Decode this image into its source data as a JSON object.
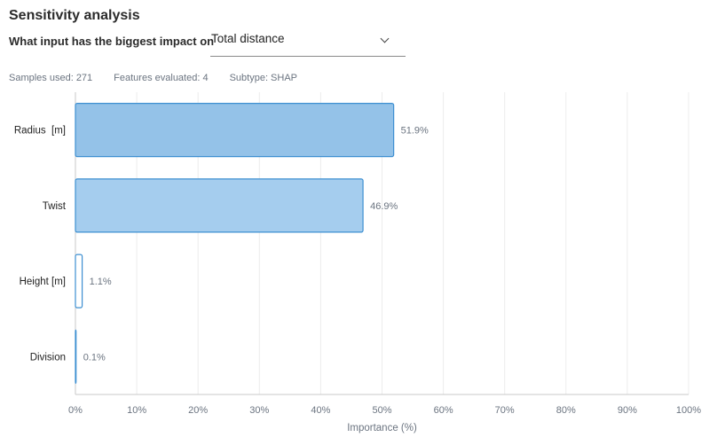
{
  "header": {
    "title": "Sensitivity analysis",
    "prompt": "What input has the biggest impact on",
    "selected_output": "Total distance"
  },
  "meta": {
    "samples": "Samples used: 271",
    "features": "Features evaluated: 4",
    "subtype": "Subtype: SHAP"
  },
  "colors": {
    "bar_fill": [
      "#94c2e8",
      "#a5cdee",
      "#ffffff",
      "#ffffff"
    ],
    "bar_stroke": "#3d8fd1",
    "grid": "#ececec",
    "axis": "#c8c8c8"
  },
  "chart_data": {
    "type": "bar",
    "orientation": "horizontal",
    "categories": [
      "Radius  [m]",
      "Twist",
      "Height [m]",
      "Division"
    ],
    "values": [
      51.9,
      46.9,
      1.1,
      0.1
    ],
    "value_labels": [
      "51.9%",
      "46.9%",
      "1.1%",
      "0.1%"
    ],
    "xlabel": "Importance (%)",
    "ylabel": "",
    "xlim": [
      0,
      100
    ],
    "xticks": [
      0,
      10,
      20,
      30,
      40,
      50,
      60,
      70,
      80,
      90,
      100
    ],
    "xtick_labels": [
      "0%",
      "10%",
      "20%",
      "30%",
      "40%",
      "50%",
      "60%",
      "70%",
      "80%",
      "90%",
      "100%"
    ],
    "grid": true
  }
}
